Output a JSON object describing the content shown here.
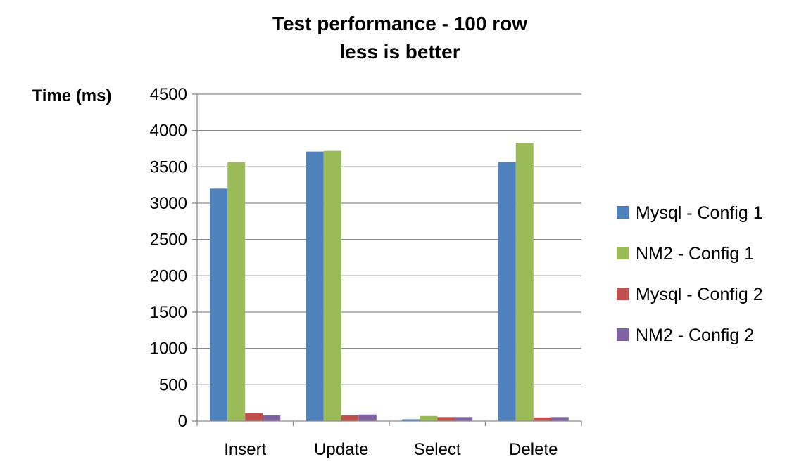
{
  "chart_data": {
    "type": "bar",
    "title_lines": [
      "Test performance - 100 row",
      "less is better"
    ],
    "ylabel": "Time (ms)",
    "xlabel": "",
    "ylim": [
      0,
      4500
    ],
    "yticks": [
      "0",
      "500",
      "1000",
      "1500",
      "2000",
      "2500",
      "3000",
      "3500",
      "4000",
      "4500"
    ],
    "ytick_values": [
      0,
      500,
      1000,
      1500,
      2000,
      2500,
      3000,
      3500,
      4000,
      4500
    ],
    "grid": true,
    "legend_position": "right",
    "categories": [
      "Insert",
      "Update",
      "Select",
      "Delete"
    ],
    "series": [
      {
        "name": "Mysql - Config 1",
        "color": "#4F81BD",
        "values": [
          3200,
          3710,
          25,
          3565
        ]
      },
      {
        "name": "NM2 - Config 1",
        "color": "#9BBB59",
        "values": [
          3565,
          3720,
          70,
          3830
        ]
      },
      {
        "name": "Mysql - Config 2",
        "color": "#C0504D",
        "values": [
          110,
          80,
          55,
          50
        ]
      },
      {
        "name": "NM2 - Config 2",
        "color": "#8064A2",
        "values": [
          80,
          90,
          55,
          55
        ]
      }
    ]
  }
}
